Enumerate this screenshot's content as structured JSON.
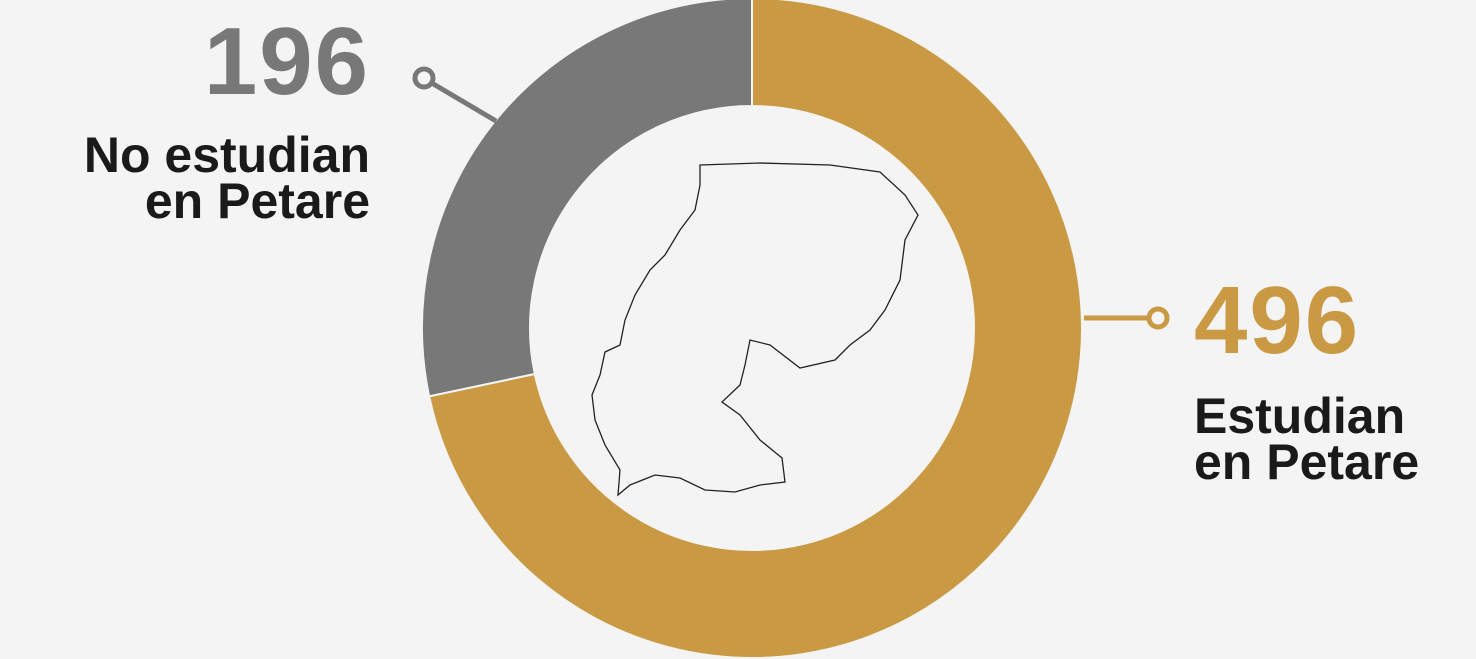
{
  "chart_data": {
    "type": "donut",
    "categories": [
      "No estudian\nen Petare",
      "Estudian\nen Petare"
    ],
    "values": [
      196,
      496
    ],
    "colors": [
      "#787878",
      "#c99a43"
    ]
  }
}
